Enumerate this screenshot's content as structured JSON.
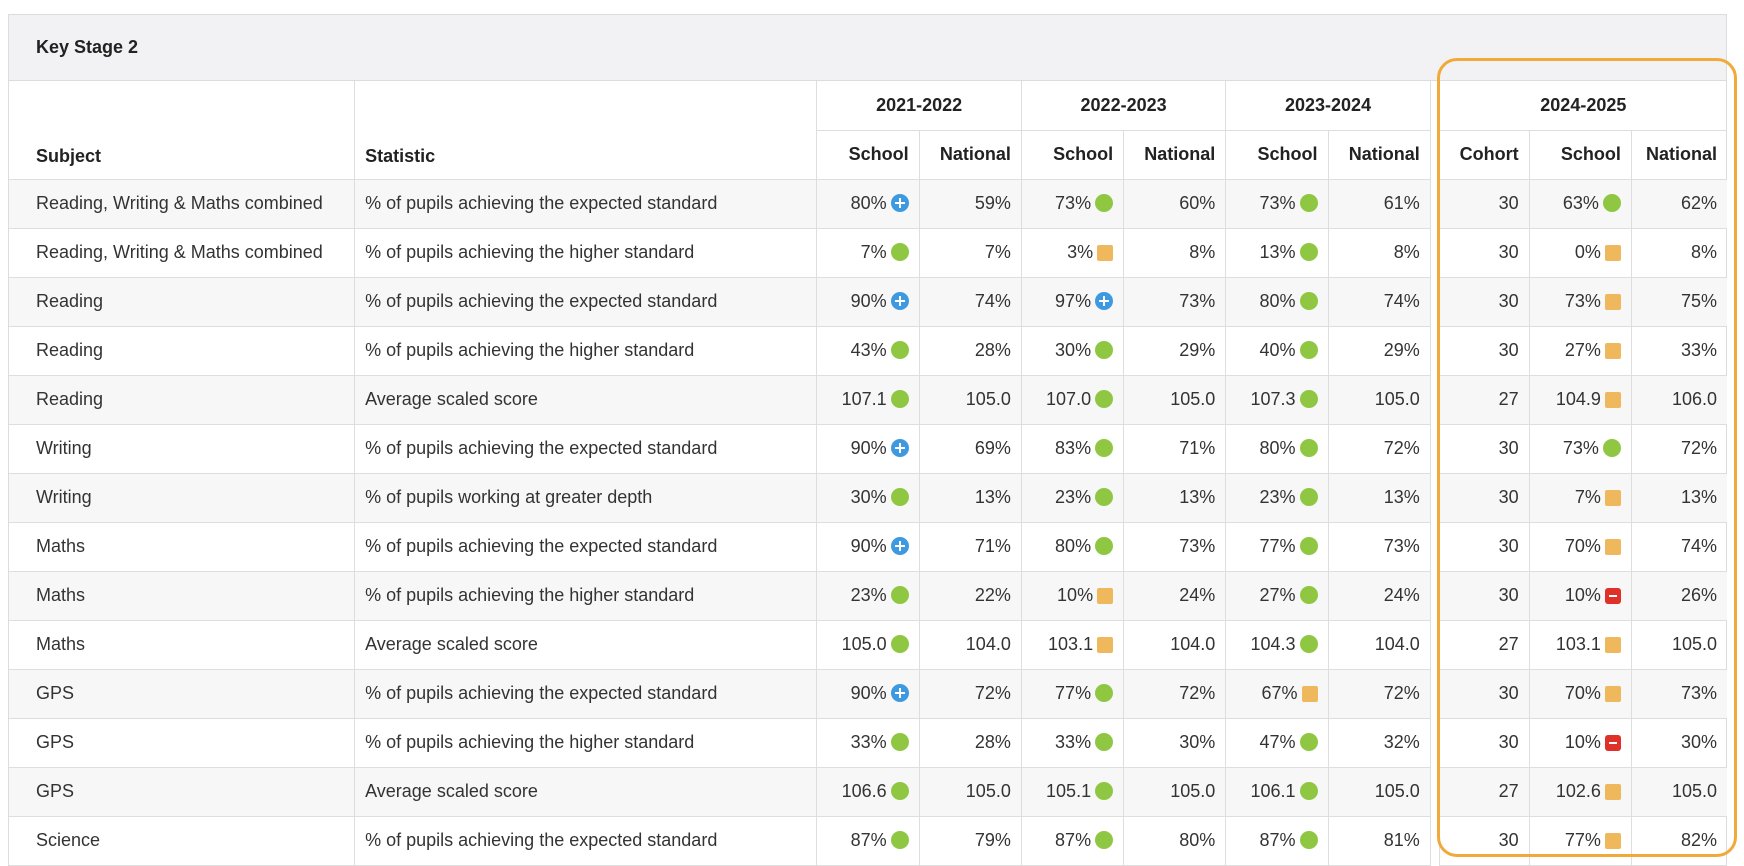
{
  "panel": {
    "title": "Key Stage 2"
  },
  "header": {
    "subject": "Subject",
    "statistic": "Statistic",
    "years": [
      "2021-2022",
      "2022-2023",
      "2023-2024",
      "2024-2025"
    ],
    "school": "School",
    "national": "National",
    "cohort": "Cohort"
  },
  "indicator_legend": {
    "plus": "blue circle with plus",
    "dot": "green circle",
    "sq": "amber square",
    "minus": "red square with minus"
  },
  "colors": {
    "highlight": "#f1a93a",
    "green": "#8fc742",
    "blue": "#3d9ae0",
    "amber": "#f0b85c",
    "red": "#e0302a"
  },
  "rows": [
    {
      "subject": "Reading, Writing & Maths combined",
      "statistic": "% of pupils achieving the expected standard",
      "s1": "80%",
      "i1": "plus",
      "n1": "59%",
      "s2": "73%",
      "i2": "dot",
      "n2": "60%",
      "s3": "73%",
      "i3": "dot",
      "n3": "61%",
      "cohort": "30",
      "s4": "63%",
      "i4": "dot",
      "n4": "62%"
    },
    {
      "subject": "Reading, Writing & Maths combined",
      "statistic": "% of pupils achieving the higher standard",
      "s1": "7%",
      "i1": "dot",
      "n1": "7%",
      "s2": "3%",
      "i2": "sq",
      "n2": "8%",
      "s3": "13%",
      "i3": "dot",
      "n3": "8%",
      "cohort": "30",
      "s4": "0%",
      "i4": "sq",
      "n4": "8%"
    },
    {
      "subject": "Reading",
      "statistic": "% of pupils achieving the expected standard",
      "s1": "90%",
      "i1": "plus",
      "n1": "74%",
      "s2": "97%",
      "i2": "plus",
      "n2": "73%",
      "s3": "80%",
      "i3": "dot",
      "n3": "74%",
      "cohort": "30",
      "s4": "73%",
      "i4": "sq",
      "n4": "75%"
    },
    {
      "subject": "Reading",
      "statistic": "% of pupils achieving the higher standard",
      "s1": "43%",
      "i1": "dot",
      "n1": "28%",
      "s2": "30%",
      "i2": "dot",
      "n2": "29%",
      "s3": "40%",
      "i3": "dot",
      "n3": "29%",
      "cohort": "30",
      "s4": "27%",
      "i4": "sq",
      "n4": "33%"
    },
    {
      "subject": "Reading",
      "statistic": "Average scaled score",
      "s1": "107.1",
      "i1": "dot",
      "n1": "105.0",
      "s2": "107.0",
      "i2": "dot",
      "n2": "105.0",
      "s3": "107.3",
      "i3": "dot",
      "n3": "105.0",
      "cohort": "27",
      "s4": "104.9",
      "i4": "sq",
      "n4": "106.0"
    },
    {
      "subject": "Writing",
      "statistic": "% of pupils achieving the expected standard",
      "s1": "90%",
      "i1": "plus",
      "n1": "69%",
      "s2": "83%",
      "i2": "dot",
      "n2": "71%",
      "s3": "80%",
      "i3": "dot",
      "n3": "72%",
      "cohort": "30",
      "s4": "73%",
      "i4": "dot",
      "n4": "72%"
    },
    {
      "subject": "Writing",
      "statistic": "% of pupils working at greater depth",
      "s1": "30%",
      "i1": "dot",
      "n1": "13%",
      "s2": "23%",
      "i2": "dot",
      "n2": "13%",
      "s3": "23%",
      "i3": "dot",
      "n3": "13%",
      "cohort": "30",
      "s4": "7%",
      "i4": "sq",
      "n4": "13%"
    },
    {
      "subject": "Maths",
      "statistic": "% of pupils achieving the expected standard",
      "s1": "90%",
      "i1": "plus",
      "n1": "71%",
      "s2": "80%",
      "i2": "dot",
      "n2": "73%",
      "s3": "77%",
      "i3": "dot",
      "n3": "73%",
      "cohort": "30",
      "s4": "70%",
      "i4": "sq",
      "n4": "74%"
    },
    {
      "subject": "Maths",
      "statistic": "% of pupils achieving the higher standard",
      "s1": "23%",
      "i1": "dot",
      "n1": "22%",
      "s2": "10%",
      "i2": "sq",
      "n2": "24%",
      "s3": "27%",
      "i3": "dot",
      "n3": "24%",
      "cohort": "30",
      "s4": "10%",
      "i4": "minus",
      "n4": "26%"
    },
    {
      "subject": "Maths",
      "statistic": "Average scaled score",
      "s1": "105.0",
      "i1": "dot",
      "n1": "104.0",
      "s2": "103.1",
      "i2": "sq",
      "n2": "104.0",
      "s3": "104.3",
      "i3": "dot",
      "n3": "104.0",
      "cohort": "27",
      "s4": "103.1",
      "i4": "sq",
      "n4": "105.0"
    },
    {
      "subject": "GPS",
      "statistic": "% of pupils achieving the expected standard",
      "s1": "90%",
      "i1": "plus",
      "n1": "72%",
      "s2": "77%",
      "i2": "dot",
      "n2": "72%",
      "s3": "67%",
      "i3": "sq",
      "n3": "72%",
      "cohort": "30",
      "s4": "70%",
      "i4": "sq",
      "n4": "73%"
    },
    {
      "subject": "GPS",
      "statistic": "% of pupils achieving the higher standard",
      "s1": "33%",
      "i1": "dot",
      "n1": "28%",
      "s2": "33%",
      "i2": "dot",
      "n2": "30%",
      "s3": "47%",
      "i3": "dot",
      "n3": "32%",
      "cohort": "30",
      "s4": "10%",
      "i4": "minus",
      "n4": "30%"
    },
    {
      "subject": "GPS",
      "statistic": "Average scaled score",
      "s1": "106.6",
      "i1": "dot",
      "n1": "105.0",
      "s2": "105.1",
      "i2": "dot",
      "n2": "105.0",
      "s3": "106.1",
      "i3": "dot",
      "n3": "105.0",
      "cohort": "27",
      "s4": "102.6",
      "i4": "sq",
      "n4": "105.0"
    },
    {
      "subject": "Science",
      "statistic": "% of pupils achieving the expected standard",
      "s1": "87%",
      "i1": "dot",
      "n1": "79%",
      "s2": "87%",
      "i2": "dot",
      "n2": "80%",
      "s3": "87%",
      "i3": "dot",
      "n3": "81%",
      "cohort": "30",
      "s4": "77%",
      "i4": "sq",
      "n4": "82%"
    }
  ]
}
